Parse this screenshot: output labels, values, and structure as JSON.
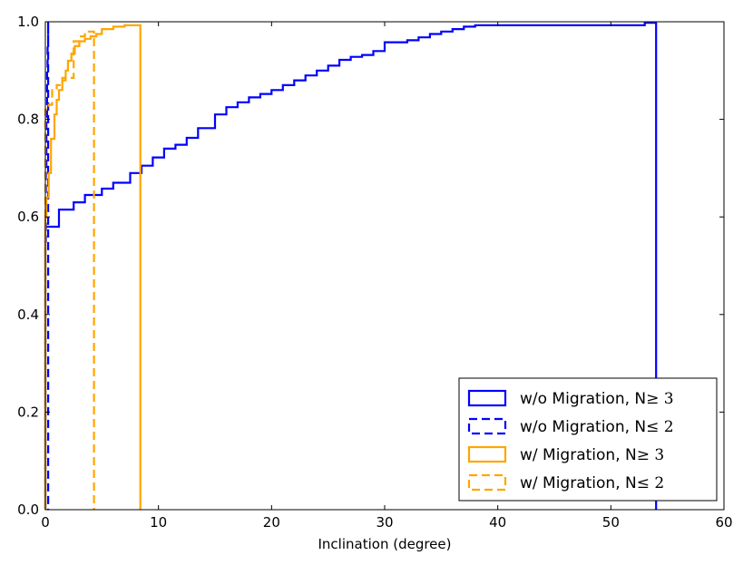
{
  "chart_data": {
    "type": "line",
    "subtype": "step-cdf",
    "title": "",
    "xlabel": "Inclination (degree)",
    "ylabel": "",
    "xlim": [
      0,
      60
    ],
    "ylim": [
      0,
      1.0
    ],
    "xticks": [
      0,
      10,
      20,
      30,
      40,
      50,
      60
    ],
    "xtick_labels": [
      "0",
      "10",
      "20",
      "30",
      "40",
      "50",
      "60"
    ],
    "yticks": [
      0,
      0.2,
      0.4,
      0.6,
      0.8,
      1.0
    ],
    "ytick_labels": [
      "0.0",
      "0.2",
      "0.4",
      "0.6",
      "0.8",
      "1.0"
    ],
    "grid": false,
    "legend_position": "bottom-right",
    "series": [
      {
        "name": "w/o Migration, N",
        "name_symbol": "≥ 3",
        "color": "#0000ff",
        "dash": "solid",
        "x": [
          0,
          0,
          1.2,
          2.5,
          3.5,
          5,
          6,
          7.5,
          8.5,
          9.5,
          10.5,
          11.5,
          12.5,
          13.5,
          15,
          16,
          17,
          18,
          19,
          20,
          21,
          22,
          23,
          24,
          25,
          26,
          27,
          28,
          29,
          30,
          32,
          33,
          34,
          35,
          36,
          37,
          38,
          53,
          54,
          54
        ],
        "y": [
          0,
          0.58,
          0.615,
          0.63,
          0.645,
          0.658,
          0.67,
          0.69,
          0.705,
          0.722,
          0.74,
          0.748,
          0.762,
          0.782,
          0.81,
          0.825,
          0.835,
          0.845,
          0.852,
          0.86,
          0.87,
          0.88,
          0.89,
          0.9,
          0.91,
          0.922,
          0.928,
          0.932,
          0.94,
          0.958,
          0.962,
          0.968,
          0.975,
          0.98,
          0.985,
          0.99,
          0.993,
          0.998,
          1.0,
          0
        ]
      },
      {
        "name": "w/o Migration, N",
        "name_symbol": "≤ 2",
        "color": "#0000ff",
        "dash": "dashed",
        "x": [
          0,
          0,
          0.05,
          0.1,
          0.15,
          0.2,
          0.25,
          0.25
        ],
        "y": [
          0,
          0.55,
          0.7,
          0.8,
          0.9,
          0.95,
          1.0,
          0
        ]
      },
      {
        "name": "w/ Migration, N",
        "name_symbol": "≥ 3",
        "color": "#ffa500",
        "dash": "solid",
        "x": [
          0,
          0,
          0.1,
          0.3,
          0.5,
          0.8,
          1.0,
          1.2,
          1.5,
          1.8,
          2.0,
          2.3,
          2.6,
          3.0,
          3.5,
          4.0,
          4.5,
          5.0,
          6.0,
          7.0,
          8.4,
          8.4
        ],
        "y": [
          0,
          0.6,
          0.64,
          0.69,
          0.76,
          0.81,
          0.84,
          0.86,
          0.88,
          0.9,
          0.92,
          0.935,
          0.95,
          0.96,
          0.965,
          0.97,
          0.975,
          0.985,
          0.99,
          0.993,
          0.993,
          0
        ]
      },
      {
        "name": "w/ Migration, N",
        "name_symbol": "≤ 2",
        "color": "#ffa500",
        "dash": "dashed",
        "x": [
          0,
          0,
          0.3,
          0.6,
          1.0,
          1.5,
          2.0,
          2.5,
          3.0,
          3.5,
          4.3,
          4.3
        ],
        "y": [
          0,
          0.82,
          0.83,
          0.86,
          0.87,
          0.885,
          0.885,
          0.96,
          0.97,
          0.98,
          0.98,
          0
        ]
      }
    ]
  }
}
